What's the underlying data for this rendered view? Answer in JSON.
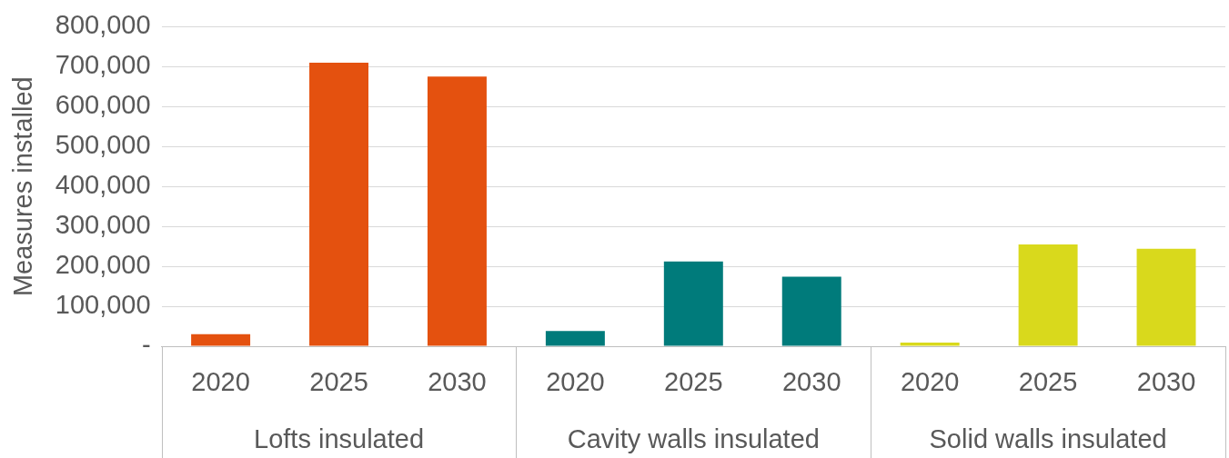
{
  "chart_data": {
    "type": "bar",
    "ylabel": "Measures installed",
    "categories": [
      "2020",
      "2025",
      "2030",
      "2020",
      "2025",
      "2030",
      "2020",
      "2025",
      "2030"
    ],
    "series": [
      {
        "name": "Lofts insulated",
        "color": "#e4510f",
        "values": [
          30000,
          710000,
          675000,
          null,
          null,
          null,
          null,
          null,
          null
        ]
      },
      {
        "name": "Cavity walls insulated",
        "color": "#007b7b",
        "values": [
          null,
          null,
          null,
          38000,
          212000,
          174000,
          null,
          null,
          null
        ]
      },
      {
        "name": "Solid walls insulated",
        "color": "#d9d91c",
        "values": [
          null,
          null,
          null,
          null,
          null,
          null,
          9000,
          255000,
          244000
        ]
      }
    ],
    "ylim": [
      0,
      800000
    ],
    "yticks": [
      {
        "value": 0,
        "label": "-"
      },
      {
        "value": 100000,
        "label": "100,000"
      },
      {
        "value": 200000,
        "label": "200,000"
      },
      {
        "value": 300000,
        "label": "300,000"
      },
      {
        "value": 400000,
        "label": "400,000"
      },
      {
        "value": 500000,
        "label": "500,000"
      },
      {
        "value": 600000,
        "label": "600,000"
      },
      {
        "value": 700000,
        "label": "700,000"
      },
      {
        "value": 800000,
        "label": "800,000"
      }
    ],
    "grid": "y",
    "legend": false
  }
}
